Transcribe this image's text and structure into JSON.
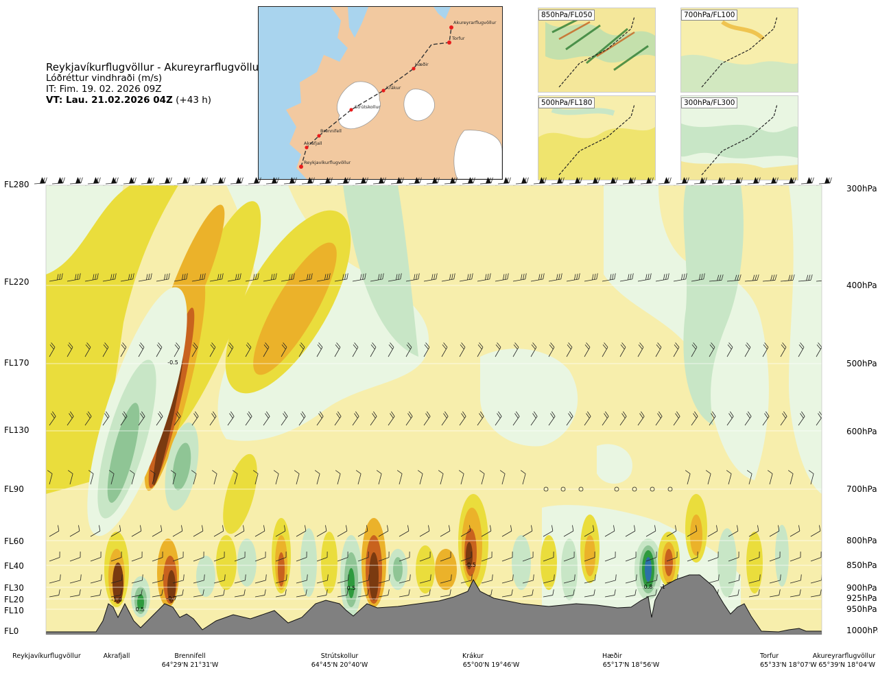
{
  "header": {
    "route": "Reykjavíkurflugvöllur - Akureyrarflugvöllur",
    "product": "Lóðréttur vindhraði (m/s)",
    "issue_time": "IT: Fim. 19. 02. 2026 09Z",
    "valid_label": "VT: Lau. 21.02.2026 04Z",
    "valid_offset": "(+43 h)"
  },
  "route_map": {
    "waypoints": [
      "Akureyrarflugvöllur",
      "Torfur",
      "Hæðir",
      "Krákur",
      "Strútskollur",
      "Brennifell",
      "Akrafjall",
      "Reykjavíkurflugvöllur"
    ],
    "land_color": "#f2c9a0",
    "water_color": "#a9d4ee",
    "ice_color": "#ffffff",
    "route_color": "#333333",
    "point_color": "#e81c1c"
  },
  "mini_maps": [
    {
      "label": "850hPa/FL050"
    },
    {
      "label": "700hPa/FL100"
    },
    {
      "label": "500hPa/FL180"
    },
    {
      "label": "300hPa/FL300"
    }
  ],
  "chart_data": {
    "type": "heatmap",
    "title": "Reykjavíkurflugvöllur - Akureyrarflugvöllur",
    "variable": "Lóðréttur vindhraði (m/s)",
    "flight_levels": [
      "FL280",
      "FL220",
      "FL170",
      "FL130",
      "FL90",
      "FL60",
      "FL40",
      "FL30",
      "FL20",
      "FL10",
      "FL0"
    ],
    "pressure_levels": [
      "300hPa",
      "400hPa",
      "500hPa",
      "600hPa",
      "700hPa",
      "800hPa",
      "850hPa",
      "900hPa",
      "925hPa",
      "950hPa",
      "1000hPa"
    ],
    "locations": [
      {
        "name": "Reykjavíkurflugvöllur",
        "coord": ""
      },
      {
        "name": "Akrafjall",
        "coord": ""
      },
      {
        "name": "Brennifell",
        "coord": "64°29'N 21°31'W"
      },
      {
        "name": "Strútskollur",
        "coord": "64°45'N 20°40'W"
      },
      {
        "name": "Krákur",
        "coord": "65°00'N 19°46'W"
      },
      {
        "name": "Hæðir",
        "coord": "65°17'N 18°56'W"
      },
      {
        "name": "Torfur",
        "coord": "65°33'N 18°07'W"
      },
      {
        "name": "Akureyrarflugvöllur",
        "coord": "65°39'N 18°04'W"
      }
    ],
    "contour_labels": [
      "-0.5",
      "-1.0",
      "0.5",
      "-0.7",
      "0.5",
      "-0.5",
      "0.8",
      "-1"
    ],
    "color_scale": {
      "strong_down": "#7a3a10",
      "down_2": "#c8621e",
      "down_1": "#ebb22a",
      "weak_down": "#eadd3c",
      "neutral": "#f7eeac",
      "weak_up": "#e9f6e2",
      "up_1": "#c8e6c6",
      "up_2": "#8fc595",
      "up_3": "#2e9a3e",
      "strong_up": "#2c6fa8"
    },
    "terrain_color": "#808080",
    "grid": true
  }
}
